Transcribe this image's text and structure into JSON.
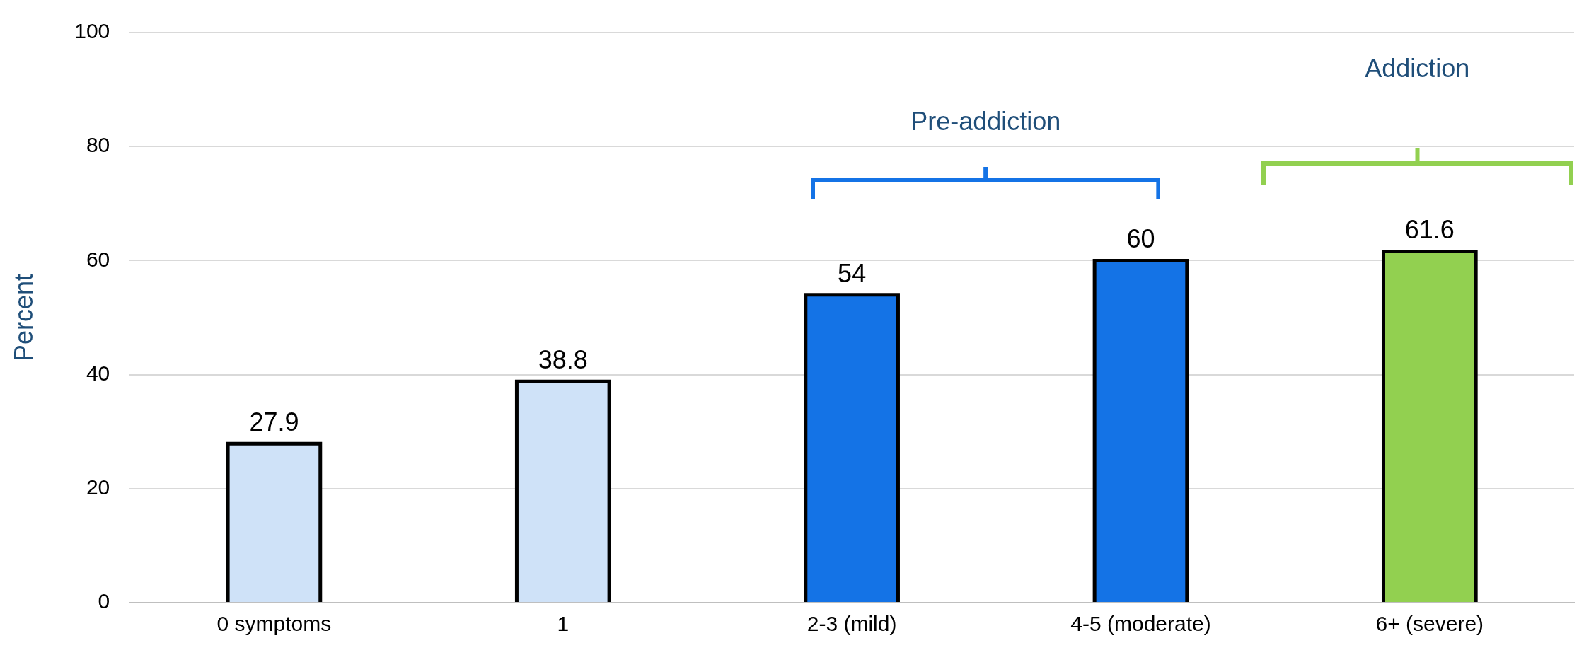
{
  "chart_data": {
    "type": "bar",
    "ylabel": "Percent",
    "categories": [
      "0 symptoms",
      "1",
      "2-3 (mild)",
      "4-5 (moderate)",
      "6+ (severe)"
    ],
    "values": [
      27.9,
      38.8,
      54,
      60,
      61.6
    ],
    "colors": [
      "#cfe2f8",
      "#cfe2f8",
      "#1473e6",
      "#1473e6",
      "#92d050"
    ],
    "ylim": [
      0,
      100
    ],
    "yticks": [
      0,
      20,
      40,
      60,
      80,
      100
    ],
    "grid": "y",
    "data_labels": true,
    "annotations": [
      "Pre-addiction",
      "Addiction"
    ]
  }
}
